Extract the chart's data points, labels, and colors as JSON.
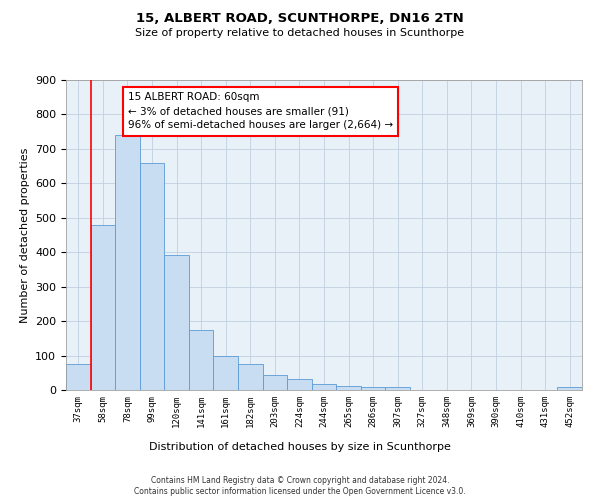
{
  "title_line1": "15, ALBERT ROAD, SCUNTHORPE, DN16 2TN",
  "title_line2": "Size of property relative to detached houses in Scunthorpe",
  "xlabel": "Distribution of detached houses by size in Scunthorpe",
  "ylabel": "Number of detached properties",
  "categories": [
    "37sqm",
    "58sqm",
    "78sqm",
    "99sqm",
    "120sqm",
    "141sqm",
    "161sqm",
    "182sqm",
    "203sqm",
    "224sqm",
    "244sqm",
    "265sqm",
    "286sqm",
    "307sqm",
    "327sqm",
    "348sqm",
    "369sqm",
    "390sqm",
    "410sqm",
    "431sqm",
    "452sqm"
  ],
  "values": [
    75,
    478,
    740,
    658,
    392,
    175,
    98,
    75,
    45,
    33,
    18,
    12,
    10,
    8,
    0,
    0,
    0,
    0,
    0,
    0,
    8
  ],
  "bar_color": "#c9ddf2",
  "bar_edge_color": "#5b9bd5",
  "redline_x": 1.0,
  "ylim": [
    0,
    900
  ],
  "yticks": [
    0,
    100,
    200,
    300,
    400,
    500,
    600,
    700,
    800,
    900
  ],
  "annotation_box_text": [
    "15 ALBERT ROAD: 60sqm",
    "← 3% of detached houses are smaller (91)",
    "96% of semi-detached houses are larger (2,664) →"
  ],
  "footer_line1": "Contains HM Land Registry data © Crown copyright and database right 2024.",
  "footer_line2": "Contains public sector information licensed under the Open Government Licence v3.0.",
  "background_color": "#ffffff",
  "axes_bg_color": "#e8f0f8",
  "grid_color": "#c0cfe0"
}
